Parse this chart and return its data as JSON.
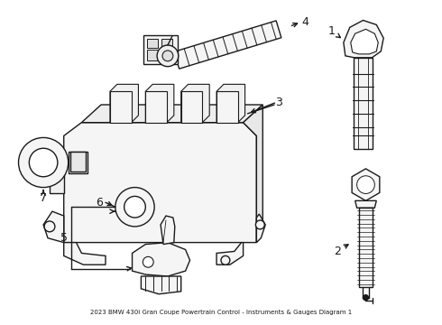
{
  "title": "2023 BMW 430i Gran Coupe Powertrain Control - Instruments & Gauges Diagram 1",
  "background_color": "#ffffff",
  "line_color": "#1a1a1a",
  "line_width": 1.0,
  "figsize": [
    4.9,
    3.6
  ],
  "dpi": 100
}
